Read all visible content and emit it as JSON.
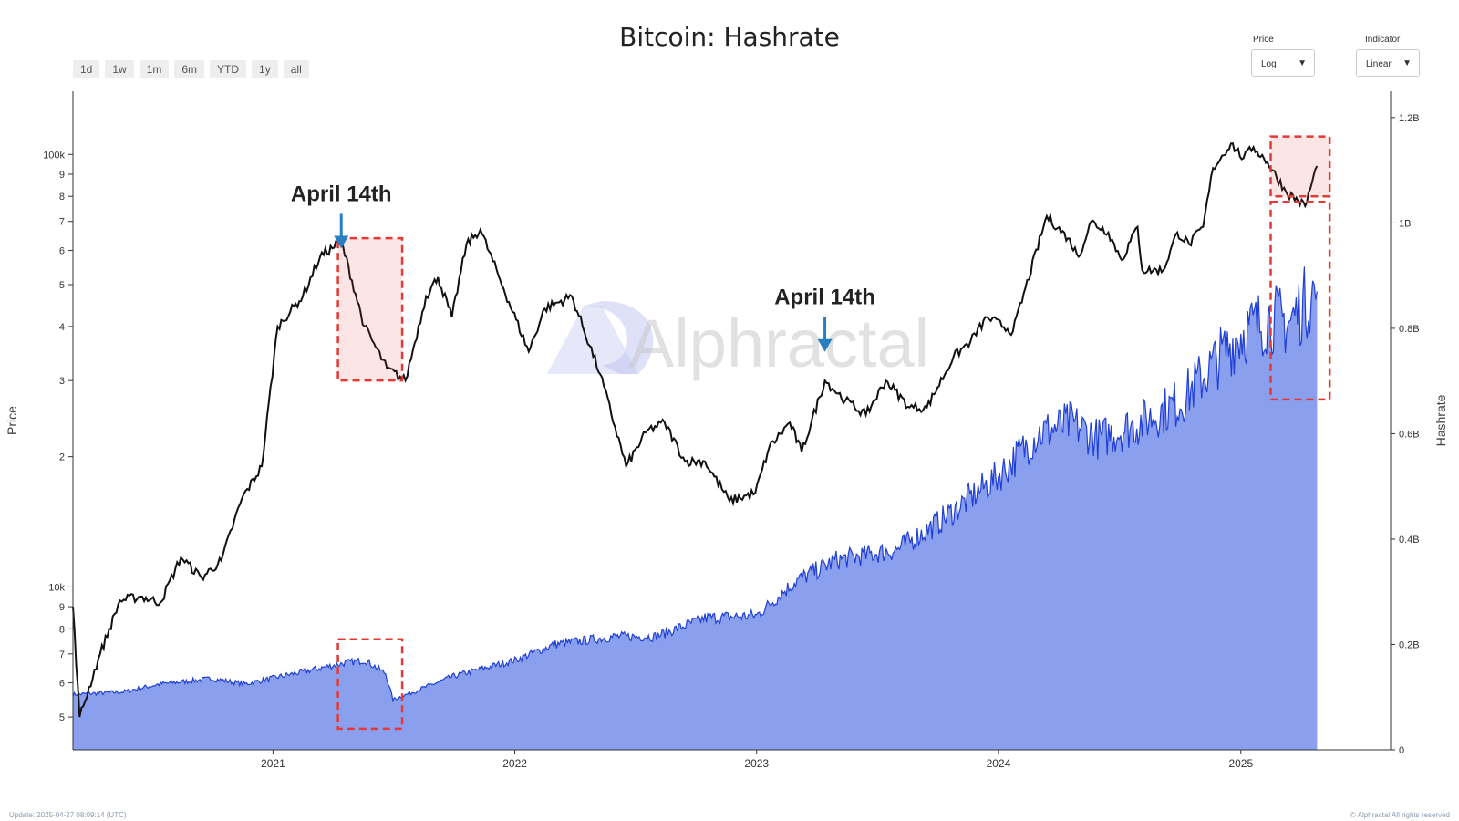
{
  "title": "Bitcoin: Hashrate",
  "range_buttons": [
    "1d",
    "1w",
    "1m",
    "6m",
    "YTD",
    "1y",
    "all"
  ],
  "price_scale": {
    "label": "Price",
    "value": "Log"
  },
  "indicator_scale": {
    "label": "Indicator",
    "value": "Linear"
  },
  "watermark": "Alphractal",
  "footer": {
    "update": "Update: 2025-04-27 08:09:14 (UTC)",
    "copyright": "© Alphractal All rights reserved"
  },
  "colors": {
    "price_line": "#111111",
    "hashrate_line": "#1f3fd6",
    "hashrate_fill": "#8aa0ef",
    "highlight": "#e53935",
    "arrow": "#2a7fc0"
  },
  "annotations": [
    {
      "text": "April 14th",
      "date": "2021-04-14"
    },
    {
      "text": "April 14th",
      "date": "2023-04-14"
    }
  ],
  "chart_data": {
    "type": "line",
    "title": "Bitcoin: Hashrate",
    "x_ticks": [
      "2021",
      "2022",
      "2023",
      "2024",
      "2025"
    ],
    "y_left": {
      "label": "Price",
      "scale": "log",
      "range": [
        4200,
        140000
      ],
      "ticks": [
        "5",
        "6",
        "7",
        "8",
        "9",
        "10k",
        "2",
        "3",
        "4",
        "5",
        "6",
        "7",
        "8",
        "9",
        "100k"
      ],
      "tick_values": [
        5000,
        6000,
        7000,
        8000,
        9000,
        10000,
        20000,
        30000,
        40000,
        50000,
        60000,
        70000,
        80000,
        90000,
        100000
      ]
    },
    "y_right": {
      "label": "Hashrate",
      "scale": "linear",
      "range": [
        0,
        1250000000.0
      ],
      "ticks": [
        "0",
        "0.2B",
        "0.4B",
        "0.6B",
        "0.8B",
        "1B",
        "1.2B"
      ],
      "tick_values": [
        0,
        200000000.0,
        400000000.0,
        600000000.0,
        800000000.0,
        1000000000.0,
        1200000000.0
      ]
    },
    "x_range": [
      "2020-03-05",
      "2025-08-15"
    ],
    "series": [
      {
        "axis": "left",
        "style": "line",
        "x": [
          "2020-03-05",
          "2020-03-15",
          "2020-04-15",
          "2020-05-15",
          "2020-06-15",
          "2020-07-15",
          "2020-08-15",
          "2020-09-15",
          "2020-10-15",
          "2020-11-15",
          "2020-12-15",
          "2021-01-08",
          "2021-02-15",
          "2021-03-13",
          "2021-04-14",
          "2021-05-19",
          "2021-06-22",
          "2021-07-20",
          "2021-08-20",
          "2021-09-07",
          "2021-09-28",
          "2021-10-20",
          "2021-11-10",
          "2021-12-15",
          "2022-01-22",
          "2022-02-15",
          "2022-03-28",
          "2022-05-10",
          "2022-06-18",
          "2022-07-20",
          "2022-08-15",
          "2022-09-15",
          "2022-10-15",
          "2022-11-21",
          "2022-12-30",
          "2023-01-20",
          "2023-02-20",
          "2023-03-10",
          "2023-04-14",
          "2023-05-15",
          "2023-06-15",
          "2023-07-15",
          "2023-08-20",
          "2023-09-15",
          "2023-10-25",
          "2023-11-20",
          "2023-12-15",
          "2024-01-23",
          "2024-03-14",
          "2024-04-15",
          "2024-05-01",
          "2024-05-20",
          "2024-06-15",
          "2024-07-05",
          "2024-07-29",
          "2024-08-05",
          "2024-09-06",
          "2024-09-27",
          "2024-10-15",
          "2024-11-05",
          "2024-11-20",
          "2024-12-17",
          "2025-01-05",
          "2025-01-20",
          "2025-02-10",
          "2025-03-10",
          "2025-04-08",
          "2025-04-26"
        ],
        "y": [
          9000,
          5000,
          7000,
          9300,
          9500,
          9200,
          11700,
          10500,
          11500,
          16000,
          19000,
          40000,
          47000,
          58000,
          63000,
          40000,
          32000,
          30000,
          47000,
          52000,
          42000,
          62000,
          67000,
          49000,
          35000,
          44000,
          47000,
          31000,
          19000,
          23000,
          24000,
          19500,
          19500,
          15800,
          16500,
          21000,
          24000,
          20500,
          30000,
          27000,
          25000,
          30000,
          26000,
          26000,
          34000,
          37000,
          42000,
          39000,
          72000,
          64000,
          58000,
          70000,
          66000,
          57000,
          68000,
          54000,
          54000,
          66000,
          62000,
          68000,
          93000,
          106000,
          98000,
          104000,
          96000,
          82000,
          76000,
          94000
        ]
      },
      {
        "axis": "right",
        "style": "area",
        "x": [
          "2020-03-05",
          "2020-05-20",
          "2020-07-15",
          "2020-10-01",
          "2020-11-20",
          "2021-01-15",
          "2021-04-01",
          "2021-04-20",
          "2021-05-20",
          "2021-06-20",
          "2021-07-01",
          "2021-08-01",
          "2021-10-01",
          "2022-01-01",
          "2022-03-01",
          "2022-06-01",
          "2022-08-01",
          "2022-10-15",
          "2023-01-01",
          "2023-03-01",
          "2023-05-01",
          "2023-08-01",
          "2023-10-01",
          "2024-01-01",
          "2024-03-01",
          "2024-04-20",
          "2024-06-01",
          "2024-08-01",
          "2024-10-01",
          "2025-01-01",
          "2025-02-15",
          "2025-03-15",
          "2025-04-15",
          "2025-04-26"
        ],
        "y": [
          105000000.0,
          110000000.0,
          125000000.0,
          135000000.0,
          125000000.0,
          140000000.0,
          160000000.0,
          165000000.0,
          170000000.0,
          145000000.0,
          95000000.0,
          110000000.0,
          140000000.0,
          170000000.0,
          200000000.0,
          215000000.0,
          215000000.0,
          250000000.0,
          255000000.0,
          320000000.0,
          360000000.0,
          380000000.0,
          430000000.0,
          520000000.0,
          600000000.0,
          620000000.0,
          590000000.0,
          620000000.0,
          660000000.0,
          790000000.0,
          820000000.0,
          810000000.0,
          860000000.0,
          870000000.0
        ]
      }
    ]
  }
}
